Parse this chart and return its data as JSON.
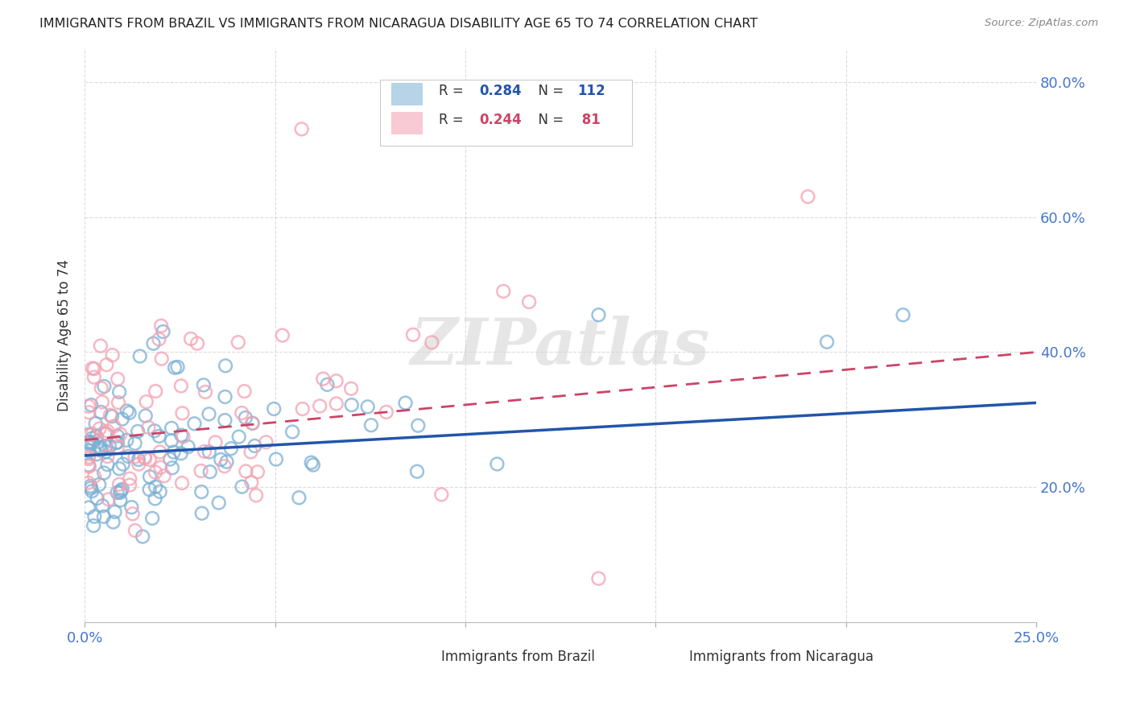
{
  "title": "IMMIGRANTS FROM BRAZIL VS IMMIGRANTS FROM NICARAGUA DISABILITY AGE 65 TO 74 CORRELATION CHART",
  "source": "Source: ZipAtlas.com",
  "ylabel_label": "Disability Age 65 to 74",
  "x_min": 0.0,
  "x_max": 0.25,
  "y_min": 0.0,
  "y_max": 0.85,
  "brazil_color": "#7BAFD4",
  "nicaragua_color": "#F4A0B0",
  "brazil_line_color": "#2255AA",
  "nicaragua_line_color": "#CC4466",
  "brazil_R": 0.284,
  "brazil_N": 112,
  "nicaragua_R": 0.244,
  "nicaragua_N": 81,
  "grid_color": "#CCCCCC",
  "background_color": "#FFFFFF",
  "watermark_text": "ZIPatlas",
  "brazil_line_y0": 0.247,
  "brazil_line_y1": 0.325,
  "nicaragua_line_y0": 0.27,
  "nicaragua_line_y1": 0.4,
  "brazil_seed": 42,
  "nicaragua_seed": 99
}
